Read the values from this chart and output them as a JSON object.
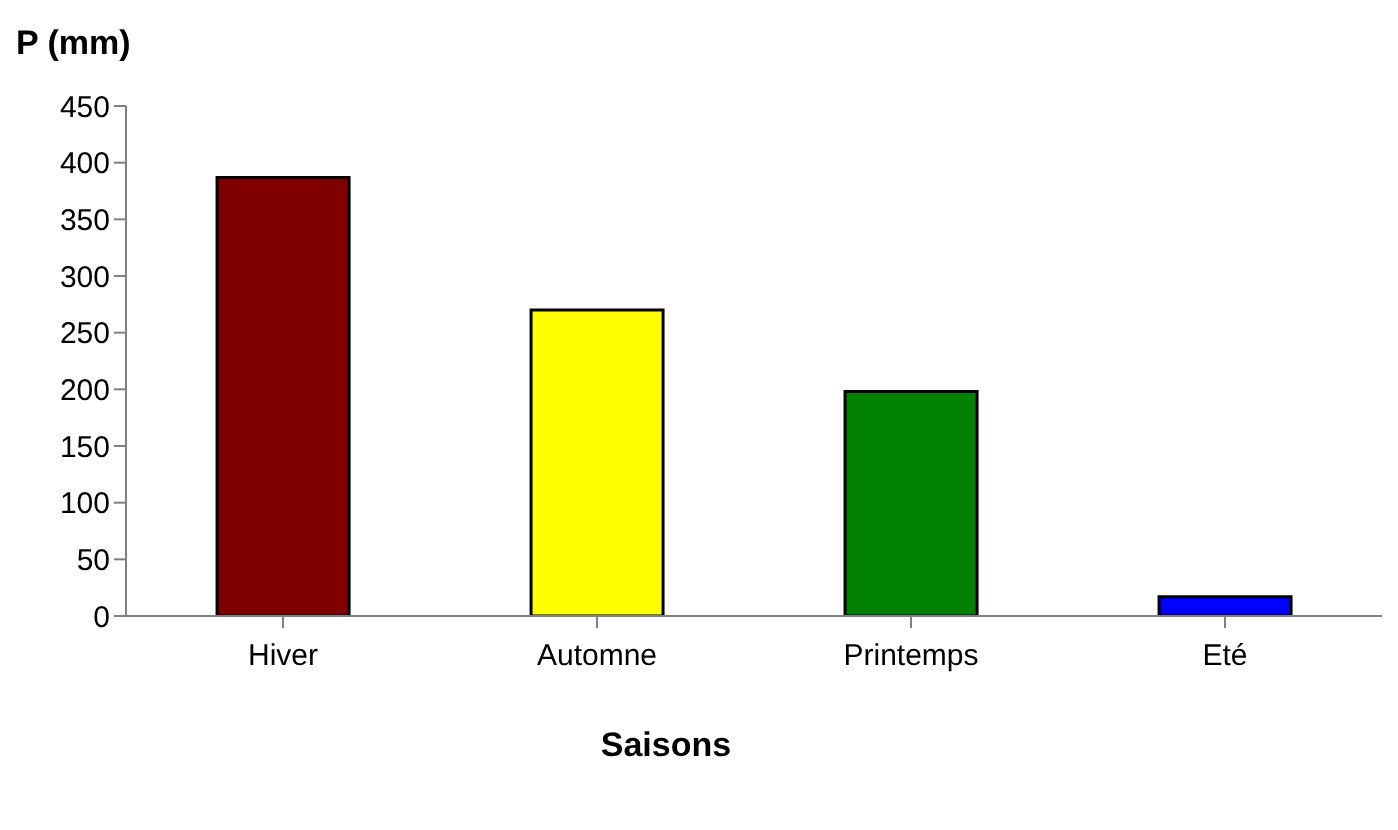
{
  "chart_data": {
    "type": "bar",
    "ylabel": "P (mm)",
    "xlabel": "Saisons",
    "categories": [
      "Hiver",
      "Automne",
      "Printemps",
      "Eté"
    ],
    "values": [
      387,
      270,
      198,
      17
    ],
    "colors": [
      "#800000",
      "#ffff00",
      "#008000",
      "#0000ff"
    ],
    "ylim": [
      0,
      450
    ],
    "yticks": [
      0,
      50,
      100,
      150,
      200,
      250,
      300,
      350,
      400,
      450
    ],
    "grid": false
  }
}
